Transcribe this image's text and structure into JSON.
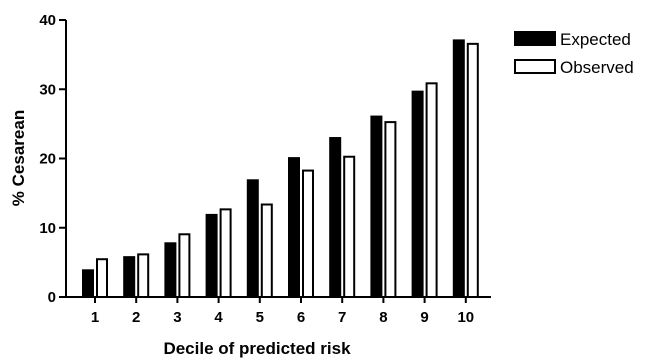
{
  "chart_data": {
    "type": "bar",
    "title": "",
    "xlabel": "Decile of predicted risk",
    "ylabel": "% Cesarean",
    "categories": [
      "1",
      "2",
      "3",
      "4",
      "5",
      "6",
      "7",
      "8",
      "9",
      "10"
    ],
    "ylim": [
      0,
      40
    ],
    "yticks": [
      "0",
      "10",
      "20",
      "30",
      "40"
    ],
    "grid": false,
    "legend_position": "top-right",
    "series": [
      {
        "name": "Expected",
        "color": "#000000",
        "fill": "solid",
        "values": [
          4.0,
          5.9,
          7.9,
          12.0,
          17.0,
          20.2,
          23.1,
          26.2,
          29.8,
          37.2
        ]
      },
      {
        "name": "Observed",
        "color": "#ffffff",
        "fill": "hollow",
        "values": [
          5.6,
          6.3,
          9.2,
          12.8,
          13.5,
          18.4,
          20.4,
          25.4,
          31.0,
          36.7
        ]
      }
    ]
  }
}
